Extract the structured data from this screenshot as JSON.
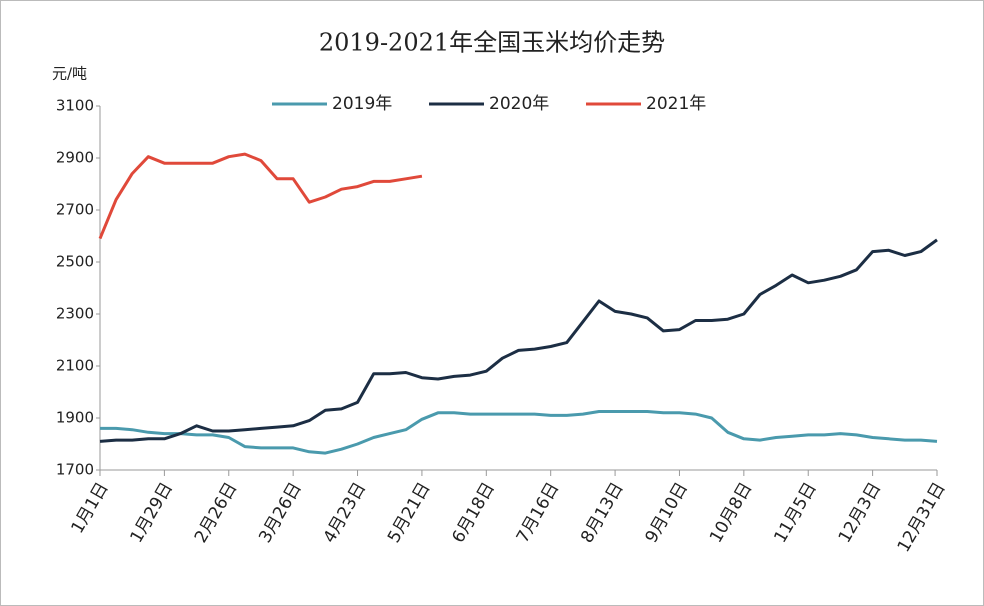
{
  "chart_data": {
    "type": "line",
    "title": "2019-2021年全国玉米均价走势",
    "y_label": "元/吨",
    "x": [
      1,
      8,
      15,
      22,
      29,
      36,
      43,
      50,
      57,
      64,
      71,
      78,
      85,
      92,
      99,
      106,
      113,
      120,
      127,
      134,
      141,
      148,
      155,
      162,
      169,
      176,
      183,
      190,
      197,
      204,
      211,
      218,
      225,
      232,
      239,
      246,
      253,
      260,
      267,
      274,
      281,
      288,
      295,
      302,
      309,
      316,
      323,
      330,
      337,
      344,
      351,
      358,
      365
    ],
    "xlim": [
      1,
      365
    ],
    "xticks": [
      {
        "value": 1,
        "label": "1月1日"
      },
      {
        "value": 29,
        "label": "1月29日"
      },
      {
        "value": 57,
        "label": "2月26日"
      },
      {
        "value": 85,
        "label": "3月26日"
      },
      {
        "value": 113,
        "label": "4月23日"
      },
      {
        "value": 141,
        "label": "5月21日"
      },
      {
        "value": 169,
        "label": "6月18日"
      },
      {
        "value": 197,
        "label": "7月16日"
      },
      {
        "value": 225,
        "label": "8月13日"
      },
      {
        "value": 253,
        "label": "9月10日"
      },
      {
        "value": 281,
        "label": "10月8日"
      },
      {
        "value": 309,
        "label": "11月5日"
      },
      {
        "value": 337,
        "label": "12月3日"
      },
      {
        "value": 365,
        "label": "12月31日"
      }
    ],
    "ylim": [
      1700,
      3100
    ],
    "yticks": [
      1700,
      1900,
      2100,
      2300,
      2500,
      2700,
      2900,
      3100
    ],
    "legend": "top",
    "series": [
      {
        "name": "2019年",
        "color": "#4a9aad",
        "values": [
          1860,
          1860,
          1855,
          1845,
          1840,
          1840,
          1835,
          1835,
          1825,
          1790,
          1785,
          1785,
          1785,
          1770,
          1765,
          1780,
          1800,
          1825,
          1840,
          1855,
          1895,
          1920,
          1920,
          1915,
          1915,
          1915,
          1915,
          1915,
          1910,
          1910,
          1915,
          1925,
          1925,
          1925,
          1925,
          1920,
          1920,
          1915,
          1900,
          1845,
          1820,
          1815,
          1825,
          1830,
          1835,
          1835,
          1840,
          1835,
          1825,
          1820,
          1815,
          1815,
          1810
        ]
      },
      {
        "name": "2020年",
        "color": "#1c2e44",
        "values": [
          1810,
          1815,
          1815,
          1820,
          1820,
          1840,
          1870,
          1850,
          1850,
          1855,
          1860,
          1865,
          1870,
          1890,
          1930,
          1935,
          1960,
          2070,
          2070,
          2075,
          2055,
          2050,
          2060,
          2065,
          2080,
          2130,
          2160,
          2165,
          2175,
          2190,
          2270,
          2350,
          2310,
          2300,
          2285,
          2235,
          2240,
          2275,
          2275,
          2280,
          2300,
          2375,
          2410,
          2450,
          2420,
          2430,
          2445,
          2470,
          2540,
          2545,
          2525,
          2540,
          2585
        ]
      },
      {
        "name": "2021年",
        "color": "#e0493a",
        "values": [
          2590,
          2740,
          2840,
          2905,
          2880,
          2880,
          2880,
          2880,
          2905,
          2915,
          2890,
          2820,
          2820,
          2730,
          2750,
          2780,
          2790,
          2810,
          2810,
          2820,
          2830,
          null,
          null,
          null,
          null,
          null,
          null,
          null,
          null,
          null,
          null,
          null,
          null,
          null,
          null,
          null,
          null,
          null,
          null,
          null,
          null,
          null,
          null,
          null,
          null,
          null,
          null,
          null,
          null,
          null,
          null,
          null,
          null
        ]
      }
    ]
  }
}
